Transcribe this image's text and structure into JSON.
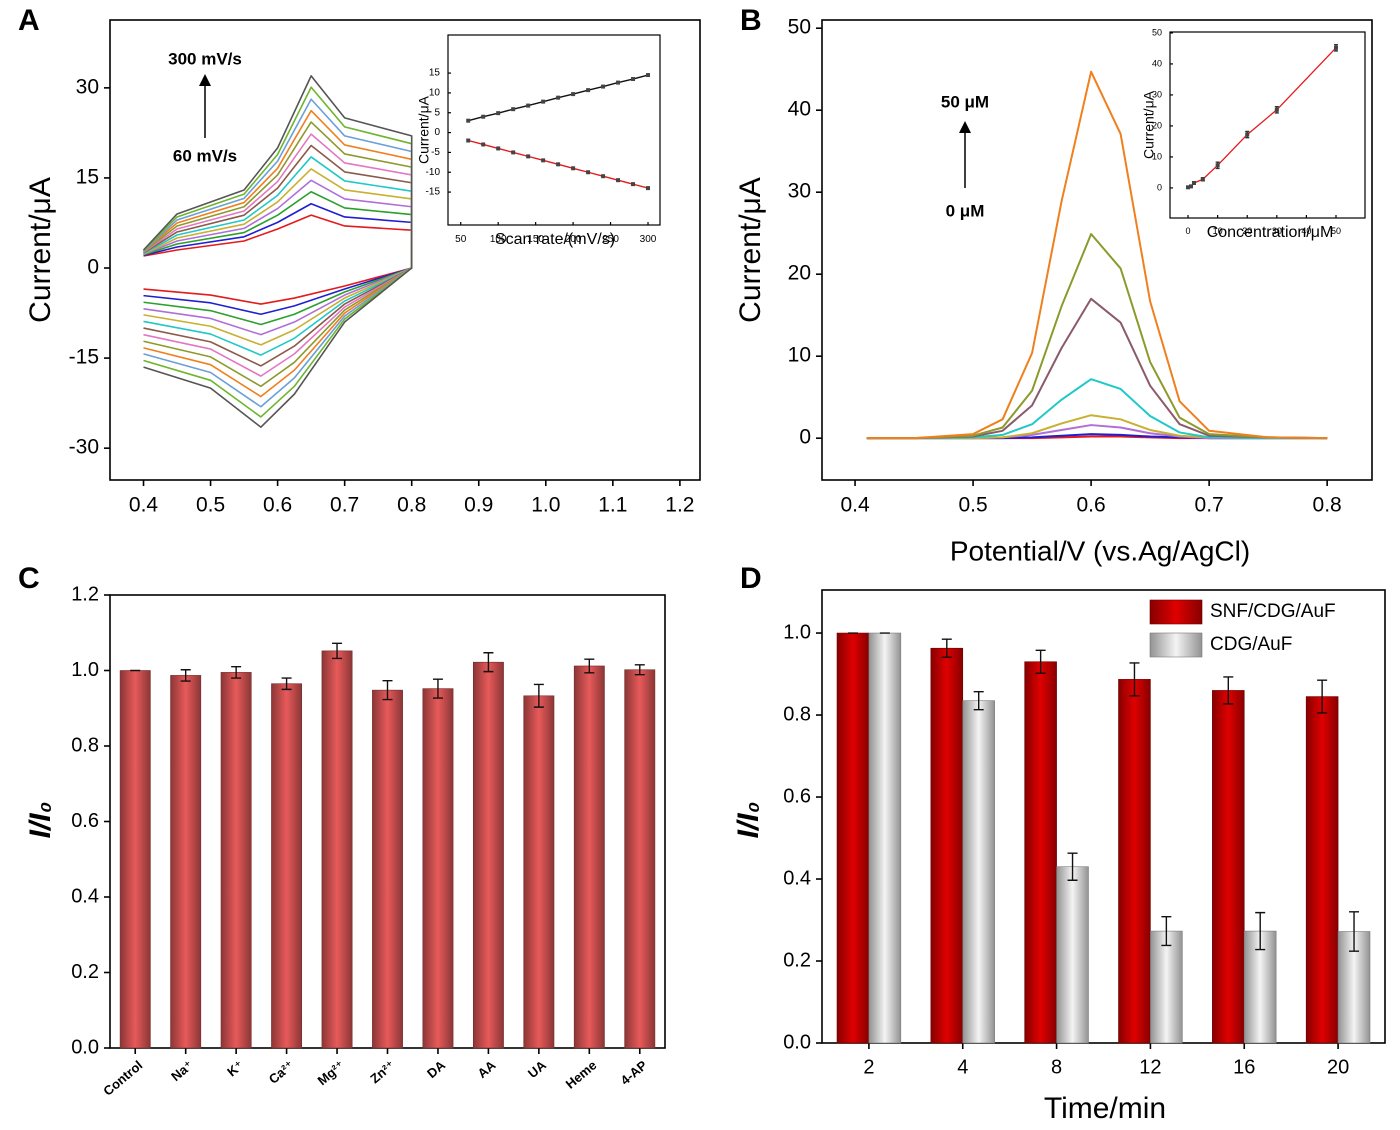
{
  "chart_data": [
    {
      "type": "line",
      "panel_label": "A",
      "y_label": "Current/μA",
      "annotations": [
        "300 mV/s",
        "60 mV/s"
      ],
      "xlim": [
        0.35,
        1.23
      ],
      "xticks": [
        0.4,
        0.5,
        0.6,
        0.7,
        0.8,
        0.9,
        {
          "value": 1,
          "label": "1.0"
        },
        1.1,
        1.2
      ],
      "ylim": [
        -35.3,
        41.3
      ],
      "yticks": [
        -30,
        -15,
        0,
        15,
        30
      ],
      "x": [
        0.4,
        0.45,
        0.55,
        0.6,
        0.65,
        0.7,
        0.8,
        0.8,
        0.7,
        0.625,
        0.575,
        0.5,
        0.4
      ],
      "series": [
        {
          "color": "#e41a1c",
          "values": [
            2,
            3,
            4.5,
            6.5,
            8.8,
            7,
            6.3,
            0,
            -3,
            -5,
            -6,
            -4.5,
            -3.5
          ]
        },
        {
          "color": "#1f1fd0",
          "values": [
            2.1,
            3.5,
            5.2,
            7.6,
            10.7,
            8.5,
            7.6,
            0,
            -3.5,
            -6.3,
            -7.7,
            -5.8,
            -4.6
          ]
        },
        {
          "color": "#2ca02c",
          "values": [
            2.2,
            4,
            5.9,
            8.8,
            12.7,
            10,
            8.9,
            0,
            -4,
            -7.7,
            -9.4,
            -7.1,
            -5.7
          ]
        },
        {
          "color": "#b06fd8",
          "values": [
            2.3,
            4.5,
            6.6,
            9.9,
            14.6,
            11.5,
            10.2,
            0,
            -4.5,
            -9,
            -11.1,
            -8.4,
            -6.8
          ]
        },
        {
          "color": "#c8b030",
          "values": [
            2.3,
            5,
            7.3,
            11,
            16.5,
            13,
            11.5,
            0,
            -5,
            -10.3,
            -12.8,
            -9.7,
            -7.8
          ]
        },
        {
          "color": "#20c8c8",
          "values": [
            2.4,
            5.5,
            8,
            12.1,
            18.5,
            14.5,
            12.8,
            0,
            -5.5,
            -11.7,
            -14.5,
            -11,
            -8.9
          ]
        },
        {
          "color": "#8b5a4a",
          "values": [
            2.5,
            6,
            8.8,
            13.3,
            20.4,
            16,
            14.2,
            0,
            -6,
            -13,
            -16.3,
            -12.3,
            -10
          ]
        },
        {
          "color": "#e377c2",
          "values": [
            2.6,
            6.5,
            9.5,
            14.4,
            22.3,
            17.5,
            15.5,
            0,
            -6.5,
            -14.3,
            -18,
            -13.5,
            -11.1
          ]
        },
        {
          "color": "#8c9a2c",
          "values": [
            2.7,
            7,
            10.2,
            15.5,
            24.3,
            19,
            16.8,
            0,
            -7,
            -15.7,
            -19.7,
            -14.8,
            -12.2
          ]
        },
        {
          "color": "#f07f1e",
          "values": [
            2.8,
            7.5,
            10.9,
            16.6,
            26.2,
            20.5,
            18.1,
            0,
            -7.5,
            -17,
            -21.4,
            -16.1,
            -13.3
          ]
        },
        {
          "color": "#6a9fd8",
          "values": [
            2.8,
            8,
            11.6,
            17.8,
            28.1,
            22,
            19.4,
            0,
            -8,
            -18.3,
            -23.1,
            -17.4,
            -14.3
          ]
        },
        {
          "color": "#6cb52c",
          "values": [
            2.9,
            8.5,
            12.3,
            18.9,
            30.1,
            23.5,
            20.7,
            0,
            -8.5,
            -19.7,
            -24.8,
            -18.7,
            -15.4
          ]
        },
        {
          "color": "#555555",
          "values": [
            3,
            9,
            13,
            20,
            32,
            25,
            22,
            0,
            -9,
            -21,
            -26.5,
            -20,
            -16.5
          ]
        }
      ]
    },
    {
      "type": "line",
      "markers": true,
      "x_label": "Scan rate/(mV/s)",
      "y_label": "Current/μA",
      "xlim": [
        33,
        316
      ],
      "xticks": [
        50,
        100,
        150,
        200,
        250,
        300
      ],
      "ylim": [
        -23.3,
        24.6
      ],
      "yticks": [
        -15,
        -10,
        -5,
        0,
        5,
        10,
        15
      ],
      "x": [
        60,
        80,
        100,
        120,
        140,
        160,
        180,
        200,
        220,
        240,
        260,
        280,
        300
      ],
      "series": [
        {
          "color": "#111111",
          "values": [
            3,
            4,
            4.9,
            5.9,
            6.8,
            7.8,
            8.8,
            9.7,
            10.7,
            11.6,
            12.6,
            13.5,
            14.5
          ]
        },
        {
          "color": "#e41a1c",
          "values": [
            -2,
            -3,
            -4,
            -5,
            -6,
            -7,
            -8,
            -9,
            -10,
            -11,
            -12,
            -13,
            -14
          ]
        }
      ]
    },
    {
      "type": "line",
      "panel_label": "B",
      "x_label": "Potential/V (vs.Ag/AgCl)",
      "y_label": "Current/μA",
      "annotations": [
        "50 μM",
        "0 μM"
      ],
      "xlim": [
        0.372,
        0.838
      ],
      "xticks": [
        0.4,
        0.5,
        0.6,
        0.7,
        0.8
      ],
      "ylim": [
        -5.1,
        51
      ],
      "yticks": [
        0,
        10,
        20,
        30,
        40,
        50
      ],
      "x": [
        0.41,
        0.45,
        0.5,
        0.525,
        0.55,
        0.575,
        0.6,
        0.625,
        0.65,
        0.675,
        0.7,
        0.75,
        0.8
      ],
      "series": [
        {
          "color": "#e41a1c",
          "values": [
            0,
            0,
            0,
            0,
            0,
            0.1,
            0.2,
            0.2,
            0.1,
            0,
            0,
            0,
            0
          ]
        },
        {
          "color": "#1f1fd0",
          "values": [
            0,
            0,
            0,
            0,
            0.1,
            0.3,
            0.5,
            0.4,
            0.2,
            0.1,
            0,
            0,
            0
          ]
        },
        {
          "color": "#b06fd8",
          "values": [
            0,
            0,
            0,
            0.1,
            0.4,
            1,
            1.6,
            1.3,
            0.6,
            0.2,
            0,
            0,
            0
          ]
        },
        {
          "color": "#c8b030",
          "values": [
            0,
            0,
            0,
            0.1,
            0.6,
            1.8,
            2.8,
            2.3,
            1,
            0.3,
            0.1,
            0,
            0
          ]
        },
        {
          "color": "#20c8c8",
          "values": [
            0,
            0,
            0.1,
            0.4,
            1.7,
            4.7,
            7.2,
            6,
            2.7,
            0.7,
            0.1,
            0,
            0
          ]
        },
        {
          "color": "#8b5a6a",
          "values": [
            0,
            0,
            0.2,
            0.9,
            4,
            11,
            17,
            14.1,
            6.4,
            1.7,
            0.3,
            0.1,
            0
          ]
        },
        {
          "color": "#8c9a2c",
          "values": [
            0,
            0,
            0.3,
            1.3,
            5.8,
            16.1,
            24.9,
            20.7,
            9.3,
            2.5,
            0.5,
            0.1,
            0
          ]
        },
        {
          "color": "#f07f1e",
          "values": [
            0,
            0,
            0.5,
            2.3,
            10.4,
            28.9,
            44.7,
            37.1,
            16.7,
            4.5,
            0.9,
            0.1,
            0
          ]
        }
      ]
    },
    {
      "type": "line",
      "markers": true,
      "x_label": "Concentration/μM",
      "y_label": "Current/μA",
      "xlim": [
        -6.1,
        59.8
      ],
      "xticks": [
        0,
        10,
        20,
        30,
        40,
        50
      ],
      "ylim": [
        -9.7,
        50.3
      ],
      "yticks": [
        0,
        10,
        20,
        30,
        40,
        50
      ],
      "x": [
        0,
        1,
        2,
        5,
        10,
        20,
        30,
        50
      ],
      "series": [
        {
          "color": "#e41a1c",
          "values": [
            0.2,
            0.5,
            1.6,
            2.8,
            7.3,
            17.2,
            25.2,
            45.2
          ],
          "errors": [
            0.3,
            0.3,
            0.4,
            0.5,
            1,
            1,
            1,
            1
          ]
        }
      ]
    },
    {
      "type": "bar",
      "panel_label": "C",
      "y_label": "I/I₀",
      "categories": [
        "Control",
        "Na⁺",
        "K⁺",
        "Ca²⁺",
        "Mg²⁺",
        "Zn²⁺",
        "DA",
        "AA",
        "UA",
        "Heme",
        "4-AP"
      ],
      "values": [
        1,
        0.987,
        0.995,
        0.965,
        1.052,
        0.948,
        0.952,
        1.022,
        0.933,
        1.012,
        1.002
      ],
      "errors": [
        0,
        0.015,
        0.015,
        0.015,
        0.02,
        0.025,
        0.025,
        0.025,
        0.03,
        0.018,
        0.013
      ],
      "color": "#e85a5a",
      "ylim": [
        0,
        1.2
      ],
      "yticks": [
        {
          "value": 0,
          "label": "0.0"
        },
        0.2,
        0.4,
        0.6,
        0.8,
        {
          "value": 1,
          "label": "1.0"
        },
        1.2
      ]
    },
    {
      "type": "bar",
      "panel_label": "D",
      "x_label": "Time/min",
      "y_label": "I/I₀",
      "legend": "upper right",
      "categories": [
        "2",
        "4",
        "8",
        "12",
        "16",
        "20"
      ],
      "series": [
        {
          "name": "SNF/CDG/AuF",
          "color": "#e00000",
          "values": [
            1,
            0.963,
            0.93,
            0.887,
            0.86,
            0.845
          ],
          "errors": [
            0,
            0.022,
            0.028,
            0.04,
            0.033,
            0.04
          ]
        },
        {
          "name": "CDG/AuF",
          "color": "#f4f4f4",
          "values": [
            1,
            0.835,
            0.43,
            0.273,
            0.273,
            0.272
          ],
          "errors": [
            0,
            0.022,
            0.033,
            0.035,
            0.045,
            0.048
          ]
        }
      ],
      "ylim": [
        0,
        1.105
      ],
      "yticks": [
        {
          "value": 0,
          "label": "0.0"
        },
        0.2,
        0.4,
        0.6,
        0.8,
        {
          "value": 1,
          "label": "1.0"
        }
      ]
    }
  ]
}
